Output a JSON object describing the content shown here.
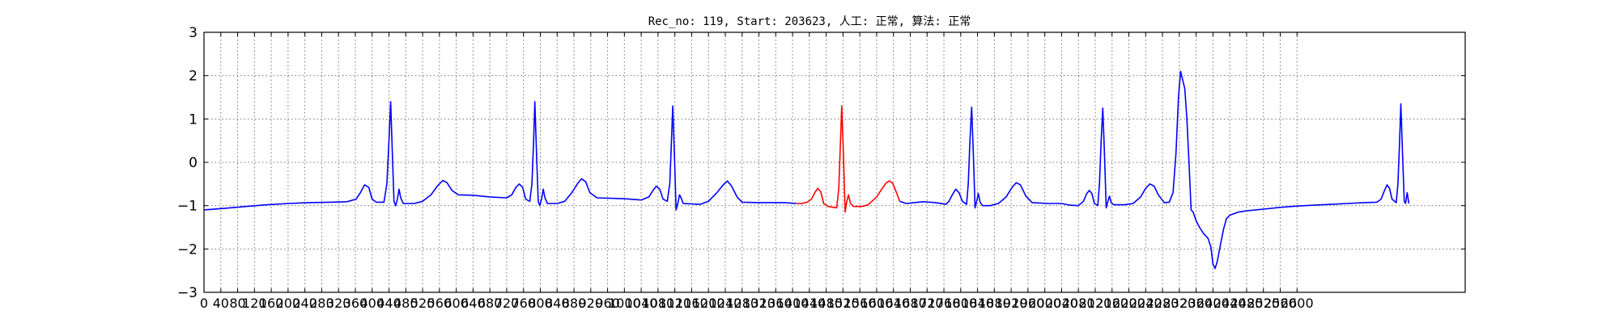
{
  "chart_data": {
    "type": "line",
    "title": "Rec_no: 119, Start: 203623, 人工: 正常, 算法: 正常",
    "xlabel": "",
    "ylabel": "",
    "xlim": [
      0,
      3000
    ],
    "ylim": [
      -3,
      3
    ],
    "grid": true,
    "x_ticks": [
      0,
      40,
      80,
      120,
      160,
      200,
      240,
      280,
      320,
      360,
      400,
      440,
      480,
      520,
      560,
      600,
      640,
      680,
      720,
      760,
      800,
      840,
      880,
      920,
      960,
      1000,
      1040,
      1080,
      1120,
      1160,
      1200,
      1240,
      1280,
      1320,
      1360,
      1400,
      1440,
      1480,
      1520,
      1560,
      1600,
      1640,
      1680,
      1720,
      1760,
      1800,
      1840,
      1880,
      1920,
      1960,
      2000,
      2040,
      2080,
      2120,
      2160,
      2200,
      2240,
      2280,
      2320,
      2360,
      2400,
      2440,
      2480,
      2520,
      2560,
      2600
    ],
    "y_ticks": [
      {
        "value": 3,
        "label": "3"
      },
      {
        "value": 2,
        "label": "2"
      },
      {
        "value": 1,
        "label": "1"
      },
      {
        "value": 0,
        "label": "0"
      },
      {
        "value": -1,
        "label": "−1"
      },
      {
        "value": -2,
        "label": "−2"
      },
      {
        "value": -3,
        "label": "−3"
      }
    ],
    "series": [
      {
        "color": "#0000ff",
        "points": [
          [
            0,
            -1.1
          ],
          [
            50,
            -1.06
          ],
          [
            100,
            -1.02
          ],
          [
            150,
            -0.98
          ],
          [
            200,
            -0.95
          ],
          [
            250,
            -0.93
          ],
          [
            300,
            -0.92
          ],
          [
            340,
            -0.91
          ],
          [
            362,
            -0.85
          ],
          [
            372,
            -0.7
          ],
          [
            382,
            -0.52
          ],
          [
            392,
            -0.58
          ],
          [
            400,
            -0.85
          ],
          [
            410,
            -0.92
          ],
          [
            428,
            -0.92
          ],
          [
            435,
            -0.5
          ],
          [
            440,
            0.5
          ],
          [
            444,
            1.4
          ],
          [
            448,
            0.2
          ],
          [
            452,
            -0.9
          ],
          [
            456,
            -1.0
          ],
          [
            460,
            -0.85
          ],
          [
            464,
            -0.62
          ],
          [
            468,
            -0.82
          ],
          [
            474,
            -0.95
          ],
          [
            500,
            -0.95
          ],
          [
            520,
            -0.9
          ],
          [
            540,
            -0.75
          ],
          [
            555,
            -0.55
          ],
          [
            568,
            -0.42
          ],
          [
            578,
            -0.47
          ],
          [
            590,
            -0.65
          ],
          [
            605,
            -0.75
          ],
          [
            640,
            -0.76
          ],
          [
            680,
            -0.8
          ],
          [
            720,
            -0.82
          ],
          [
            732,
            -0.75
          ],
          [
            742,
            -0.58
          ],
          [
            750,
            -0.5
          ],
          [
            758,
            -0.58
          ],
          [
            765,
            -0.85
          ],
          [
            775,
            -0.9
          ],
          [
            780,
            -0.5
          ],
          [
            784,
            0.5
          ],
          [
            787,
            1.4
          ],
          [
            791,
            0.2
          ],
          [
            795,
            -0.9
          ],
          [
            799,
            -1.0
          ],
          [
            803,
            -0.85
          ],
          [
            807,
            -0.62
          ],
          [
            811,
            -0.82
          ],
          [
            817,
            -0.95
          ],
          [
            840,
            -0.95
          ],
          [
            858,
            -0.9
          ],
          [
            875,
            -0.7
          ],
          [
            888,
            -0.5
          ],
          [
            898,
            -0.38
          ],
          [
            908,
            -0.45
          ],
          [
            918,
            -0.7
          ],
          [
            935,
            -0.82
          ],
          [
            1000,
            -0.84
          ],
          [
            1040,
            -0.87
          ],
          [
            1058,
            -0.8
          ],
          [
            1068,
            -0.65
          ],
          [
            1076,
            -0.55
          ],
          [
            1084,
            -0.62
          ],
          [
            1092,
            -0.85
          ],
          [
            1102,
            -0.9
          ],
          [
            1108,
            -0.5
          ],
          [
            1112,
            0.5
          ],
          [
            1115,
            1.3
          ],
          [
            1119,
            0.2
          ],
          [
            1123,
            -1.1
          ],
          [
            1127,
            -0.95
          ],
          [
            1131,
            -0.75
          ],
          [
            1135,
            -0.82
          ],
          [
            1140,
            -0.95
          ],
          [
            1180,
            -0.97
          ],
          [
            1200,
            -0.9
          ],
          [
            1220,
            -0.7
          ],
          [
            1235,
            -0.52
          ],
          [
            1245,
            -0.43
          ],
          [
            1255,
            -0.55
          ],
          [
            1268,
            -0.8
          ],
          [
            1280,
            -0.92
          ],
          [
            1320,
            -0.93
          ],
          [
            1380,
            -0.93
          ],
          [
            1410,
            -0.95
          ]
        ]
      },
      {
        "color": "#ff0000",
        "points": [
          [
            1410,
            -0.95
          ],
          [
            1422,
            -0.95
          ],
          [
            1435,
            -0.92
          ],
          [
            1445,
            -0.85
          ],
          [
            1453,
            -0.7
          ],
          [
            1460,
            -0.6
          ],
          [
            1467,
            -0.68
          ],
          [
            1474,
            -0.95
          ],
          [
            1485,
            -1.02
          ],
          [
            1505,
            -1.05
          ],
          [
            1510,
            -0.6
          ],
          [
            1514,
            0.5
          ],
          [
            1517,
            1.3
          ],
          [
            1521,
            0.2
          ],
          [
            1525,
            -1.15
          ],
          [
            1529,
            -0.9
          ],
          [
            1533,
            -0.75
          ],
          [
            1538,
            -0.95
          ],
          [
            1545,
            -1.02
          ],
          [
            1565,
            -1.02
          ],
          [
            1580,
            -0.98
          ],
          [
            1600,
            -0.8
          ],
          [
            1612,
            -0.62
          ],
          [
            1622,
            -0.48
          ],
          [
            1630,
            -0.43
          ],
          [
            1638,
            -0.48
          ],
          [
            1648,
            -0.72
          ],
          [
            1655,
            -0.9
          ]
        ]
      },
      {
        "color": "#0000ff",
        "points": [
          [
            1655,
            -0.9
          ],
          [
            1670,
            -0.95
          ],
          [
            1690,
            -0.93
          ],
          [
            1710,
            -0.91
          ],
          [
            1740,
            -0.93
          ],
          [
            1765,
            -0.97
          ],
          [
            1772,
            -0.9
          ],
          [
            1780,
            -0.75
          ],
          [
            1788,
            -0.62
          ],
          [
            1796,
            -0.7
          ],
          [
            1804,
            -0.9
          ],
          [
            1814,
            -0.97
          ],
          [
            1818,
            -0.5
          ],
          [
            1822,
            0.5
          ],
          [
            1826,
            1.27
          ],
          [
            1830,
            0.2
          ],
          [
            1834,
            -1.05
          ],
          [
            1838,
            -0.9
          ],
          [
            1842,
            -0.72
          ],
          [
            1846,
            -0.92
          ],
          [
            1852,
            -1.0
          ],
          [
            1870,
            -1.0
          ],
          [
            1890,
            -0.95
          ],
          [
            1908,
            -0.8
          ],
          [
            1922,
            -0.58
          ],
          [
            1932,
            -0.47
          ],
          [
            1942,
            -0.52
          ],
          [
            1955,
            -0.78
          ],
          [
            1970,
            -0.93
          ],
          [
            2010,
            -0.95
          ],
          [
            2040,
            -0.95
          ],
          [
            2060,
            -0.99
          ],
          [
            2080,
            -1.0
          ],
          [
            2092,
            -0.9
          ],
          [
            2100,
            -0.72
          ],
          [
            2106,
            -0.65
          ],
          [
            2112,
            -0.72
          ],
          [
            2118,
            -0.95
          ],
          [
            2126,
            -1.0
          ],
          [
            2130,
            -0.5
          ],
          [
            2134,
            0.5
          ],
          [
            2138,
            1.25
          ],
          [
            2142,
            0.2
          ],
          [
            2146,
            -1.05
          ],
          [
            2150,
            -0.9
          ],
          [
            2154,
            -0.78
          ],
          [
            2158,
            -0.93
          ],
          [
            2164,
            -0.98
          ],
          [
            2190,
            -0.98
          ],
          [
            2210,
            -0.95
          ],
          [
            2228,
            -0.8
          ],
          [
            2240,
            -0.6
          ],
          [
            2250,
            -0.5
          ],
          [
            2260,
            -0.55
          ],
          [
            2270,
            -0.75
          ],
          [
            2284,
            -0.93
          ],
          [
            2296,
            -0.92
          ],
          [
            2305,
            -0.7
          ],
          [
            2312,
            0.2
          ],
          [
            2318,
            1.5
          ],
          [
            2323,
            2.1
          ],
          [
            2328,
            1.9
          ],
          [
            2333,
            1.7
          ],
          [
            2338,
            1.0
          ],
          [
            2343,
            0.0
          ],
          [
            2348,
            -1.1
          ],
          [
            2353,
            -1.15
          ],
          [
            2360,
            -1.35
          ],
          [
            2368,
            -1.5
          ],
          [
            2378,
            -1.65
          ],
          [
            2388,
            -1.75
          ],
          [
            2395,
            -1.95
          ],
          [
            2400,
            -2.35
          ],
          [
            2405,
            -2.45
          ],
          [
            2410,
            -2.3
          ],
          [
            2418,
            -1.9
          ],
          [
            2425,
            -1.55
          ],
          [
            2432,
            -1.3
          ],
          [
            2440,
            -1.22
          ],
          [
            2460,
            -1.15
          ],
          [
            2480,
            -1.12
          ],
          [
            2520,
            -1.08
          ],
          [
            2560,
            -1.04
          ],
          [
            2600,
            -1.01
          ],
          [
            2640,
            -0.99
          ],
          [
            2680,
            -0.97
          ],
          [
            2720,
            -0.95
          ],
          [
            2760,
            -0.93
          ],
          [
            2790,
            -0.92
          ],
          [
            2800,
            -0.85
          ],
          [
            2808,
            -0.65
          ],
          [
            2814,
            -0.52
          ],
          [
            2820,
            -0.6
          ],
          [
            2826,
            -0.85
          ],
          [
            2836,
            -0.93
          ],
          [
            2840,
            -0.5
          ],
          [
            2844,
            0.5
          ],
          [
            2847,
            1.35
          ],
          [
            2851,
            0.2
          ],
          [
            2855,
            -0.9
          ],
          [
            2858,
            -0.95
          ],
          [
            2862,
            -0.7
          ],
          [
            2866,
            -0.95
          ]
        ]
      }
    ]
  }
}
